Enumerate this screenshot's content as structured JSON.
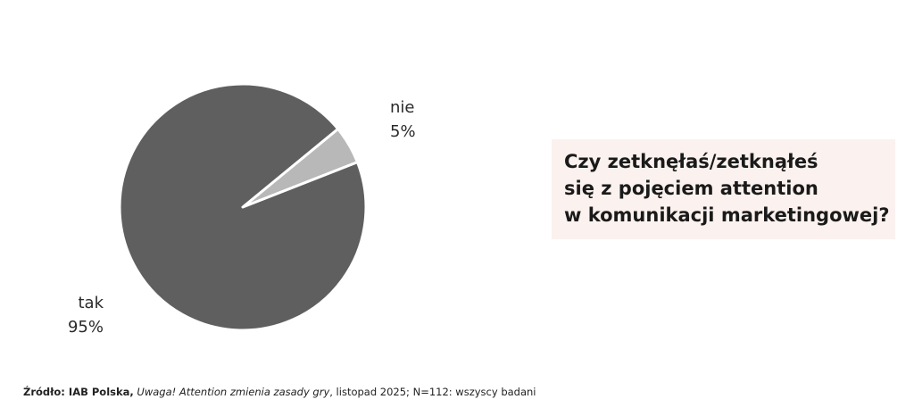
{
  "chart_data": {
    "type": "pie",
    "categories": [
      "nie",
      "tak"
    ],
    "values": [
      5,
      95
    ],
    "value_labels": [
      "5%",
      "95%"
    ],
    "colors": [
      "#b8b8b8",
      "#5f5f5f"
    ],
    "annotation": [
      "Czy zetknęłaś/zetknąłeś",
      "się z pojęciem attention",
      "w komunikacji marketingowej?"
    ],
    "source": {
      "label": "Źródło: IAB Polska,",
      "publication": "Uwaga! Attention zmienia zasady gry",
      "details": ", listopad 2025; N=112: wszyscy badani"
    }
  }
}
